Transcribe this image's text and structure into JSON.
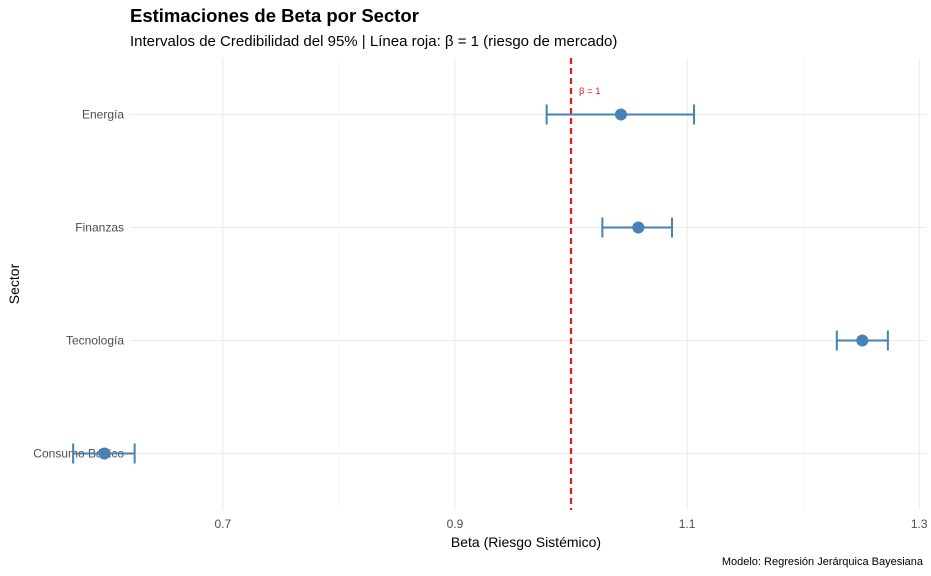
{
  "chart_data": {
    "type": "errorbar",
    "title": "Estimaciones de Beta por Sector",
    "subtitle": "Intervalos de Credibilidad del 95% | Línea roja: β = 1 (riesgo de mercado)",
    "xlabel": "Beta (Riesgo Sistémico)",
    "ylabel": "Sector",
    "caption": "Modelo: Regresión Jerárquica Bayesiana",
    "xlim": [
      0.62,
      1.305
    ],
    "x_ticks": [
      0.7,
      0.9,
      1.1,
      1.3
    ],
    "x_tick_labels": [
      "0.7",
      "0.9",
      "1.1",
      "1.3"
    ],
    "grid": true,
    "categories": [
      "Energía",
      "Finanzas",
      "Tecnología",
      "Consumo Básico"
    ],
    "series": [
      {
        "estimate": [
          1.043,
          1.058,
          1.251,
          0.598
        ],
        "lower": [
          0.979,
          1.027,
          1.229,
          0.571
        ],
        "upper": [
          1.106,
          1.087,
          1.273,
          0.624
        ]
      }
    ],
    "reference_line": {
      "x": 1.0,
      "label": "β = 1",
      "color": "#e31a1c",
      "style": "dashed"
    },
    "colors": {
      "point": "#4682b4",
      "reference": "#e31a1c"
    }
  }
}
